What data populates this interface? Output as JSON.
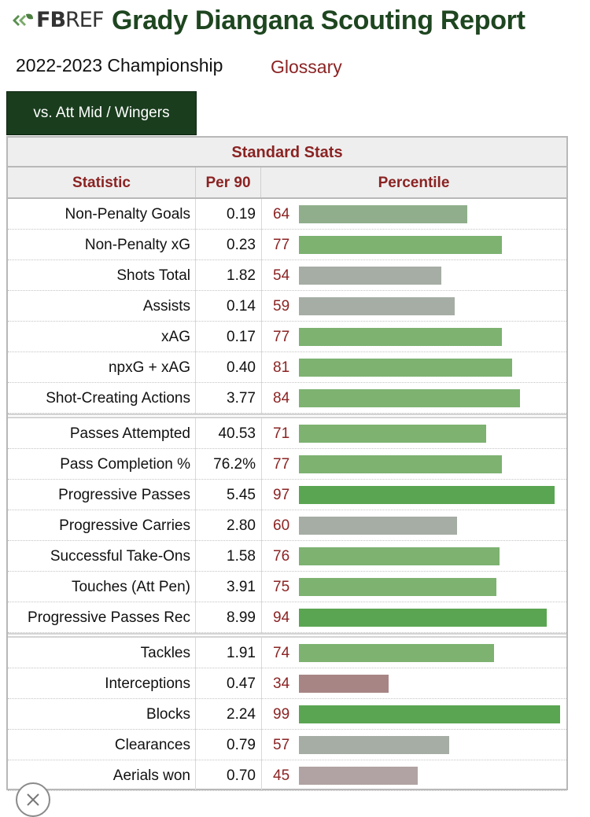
{
  "header": {
    "logo_fb": "FB",
    "logo_ref": "REF",
    "title": "Grady Diangana Scouting Report",
    "season": "2022-2023 Championship",
    "glossary_link": "Glossary",
    "tab_label": "vs. Att Mid / Wingers"
  },
  "colors": {
    "title_green": "#1e4620",
    "tab_green": "#1a3d1e",
    "header_red": "#8b2323",
    "bar_high": "#5aa552",
    "bar_good": "#7db271",
    "bar_mid_green": "#90ae8b",
    "bar_neutral": "#a6ada5",
    "bar_low_gray": "#b1a3a3",
    "bar_low": "#a88585"
  },
  "icons": {
    "logo": "fbref-leaf-logo",
    "close": "close-icon"
  },
  "chart_data": {
    "type": "bar",
    "title": "Standard Stats",
    "columns": [
      "Statistic",
      "Per 90",
      "Percentile"
    ],
    "xlim": [
      0,
      100
    ],
    "groups": [
      {
        "rows": [
          {
            "stat": "Non-Penalty Goals",
            "per90": "0.19",
            "percentile": 64
          },
          {
            "stat": "Non-Penalty xG",
            "per90": "0.23",
            "percentile": 77
          },
          {
            "stat": "Shots Total",
            "per90": "1.82",
            "percentile": 54
          },
          {
            "stat": "Assists",
            "per90": "0.14",
            "percentile": 59
          },
          {
            "stat": "xAG",
            "per90": "0.17",
            "percentile": 77
          },
          {
            "stat": "npxG + xAG",
            "per90": "0.40",
            "percentile": 81
          },
          {
            "stat": "Shot-Creating Actions",
            "per90": "3.77",
            "percentile": 84
          }
        ]
      },
      {
        "rows": [
          {
            "stat": "Passes Attempted",
            "per90": "40.53",
            "percentile": 71
          },
          {
            "stat": "Pass Completion %",
            "per90": "76.2%",
            "percentile": 77
          },
          {
            "stat": "Progressive Passes",
            "per90": "5.45",
            "percentile": 97
          },
          {
            "stat": "Progressive Carries",
            "per90": "2.80",
            "percentile": 60
          },
          {
            "stat": "Successful Take-Ons",
            "per90": "1.58",
            "percentile": 76
          },
          {
            "stat": "Touches (Att Pen)",
            "per90": "3.91",
            "percentile": 75
          },
          {
            "stat": "Progressive Passes Rec",
            "per90": "8.99",
            "percentile": 94
          }
        ]
      },
      {
        "rows": [
          {
            "stat": "Tackles",
            "per90": "1.91",
            "percentile": 74
          },
          {
            "stat": "Interceptions",
            "per90": "0.47",
            "percentile": 34
          },
          {
            "stat": "Blocks",
            "per90": "2.24",
            "percentile": 99
          },
          {
            "stat": "Clearances",
            "per90": "0.79",
            "percentile": 57
          },
          {
            "stat": "Aerials won",
            "per90": "0.70",
            "percentile": 45
          }
        ]
      }
    ]
  }
}
